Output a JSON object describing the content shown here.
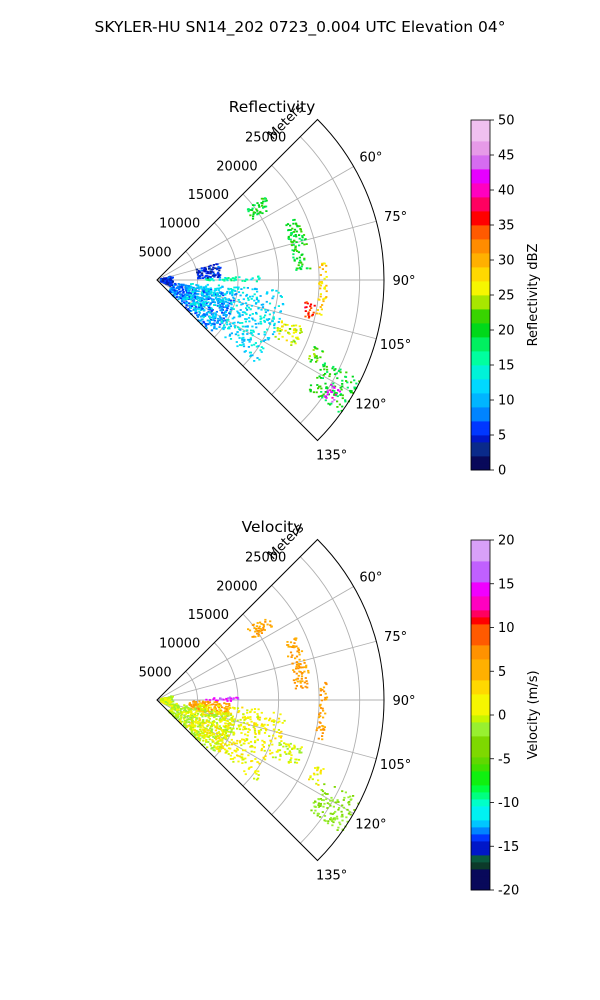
{
  "figure": {
    "suptitle": "SKYLER-HU  SN14_202  0723_0.004 UTC Elevation 04°"
  },
  "chart_data": [
    {
      "type": "polar-sector",
      "title": "Reflectivity",
      "radial_label": "Meters",
      "theta_range_deg": [
        45,
        135
      ],
      "theta_ticks": [
        "60°",
        "75°",
        "90°",
        "105°",
        "120°",
        "135°"
      ],
      "theta_tick_values": [
        60,
        75,
        90,
        105,
        120,
        135
      ],
      "r_range_m": [
        0,
        28000
      ],
      "r_ticks": [
        "5000",
        "10000",
        "15000",
        "20000",
        "25000"
      ],
      "r_tick_values": [
        5000,
        10000,
        15000,
        20000,
        25000
      ],
      "colorbar": {
        "label": "Reflectivity dBZ",
        "min": 0,
        "max": 50,
        "ticks": [
          "0",
          "5",
          "10",
          "15",
          "20",
          "25",
          "30",
          "35",
          "40",
          "45",
          "50"
        ]
      },
      "echo_regions": [
        {
          "theta_deg": [
            116,
            126
          ],
          "r_m": [
            23000,
            28000
          ],
          "value": 20
        },
        {
          "theta_deg": [
            121,
            125
          ],
          "r_m": [
            25000,
            26500
          ],
          "value": 42
        },
        {
          "theta_deg": [
            112,
            118
          ],
          "r_m": [
            21000,
            22500
          ],
          "value": 22
        },
        {
          "theta_deg": [
            108,
            116
          ],
          "r_m": [
            16000,
            19000
          ],
          "value": 25
        },
        {
          "theta_deg": [
            84,
            102
          ],
          "r_m": [
            20000,
            21000
          ],
          "value": 28
        },
        {
          "theta_deg": [
            98,
            104
          ],
          "r_m": [
            18500,
            20000
          ],
          "value": 35
        },
        {
          "theta_deg": [
            66,
            86
          ],
          "r_m": [
            17000,
            19000
          ],
          "value": 20
        },
        {
          "theta_deg": [
            52,
            58
          ],
          "r_m": [
            14000,
            17000
          ],
          "value": 20
        },
        {
          "theta_deg": [
            88,
            91
          ],
          "r_m": [
            6000,
            13000
          ],
          "value": 15
        },
        {
          "theta_deg": [
            100,
            135
          ],
          "r_m": [
            2000,
            10000
          ],
          "value": 8
        },
        {
          "theta_deg": [
            95,
            130
          ],
          "r_m": [
            4000,
            16000
          ],
          "value": 12
        },
        {
          "theta_deg": [
            75,
            88
          ],
          "r_m": [
            5000,
            8000
          ],
          "value": 5
        },
        {
          "theta_deg": [
            75,
            115
          ],
          "r_m": [
            500,
            2000
          ],
          "value": 5
        }
      ]
    },
    {
      "type": "polar-sector",
      "title": "Velocity",
      "radial_label": "Meters",
      "theta_range_deg": [
        45,
        135
      ],
      "theta_ticks": [
        "60°",
        "75°",
        "90°",
        "105°",
        "120°",
        "135°"
      ],
      "theta_tick_values": [
        60,
        75,
        90,
        105,
        120,
        135
      ],
      "r_range_m": [
        0,
        28000
      ],
      "r_ticks": [
        "5000",
        "10000",
        "15000",
        "20000",
        "25000"
      ],
      "r_tick_values": [
        5000,
        10000,
        15000,
        20000,
        25000
      ],
      "colorbar": {
        "label": "Velocity (m/s)",
        "min": -20,
        "max": 20,
        "ticks": [
          "-20",
          "-15",
          "-10",
          "-5",
          "0",
          "5",
          "10",
          "15",
          "20"
        ]
      },
      "echo_regions": [
        {
          "theta_deg": [
            116,
            126
          ],
          "r_m": [
            23000,
            28000
          ],
          "value": -3
        },
        {
          "theta_deg": [
            112,
            118
          ],
          "r_m": [
            21000,
            22500
          ],
          "value": 1
        },
        {
          "theta_deg": [
            108,
            116
          ],
          "r_m": [
            16000,
            19000
          ],
          "value": 0
        },
        {
          "theta_deg": [
            84,
            104
          ],
          "r_m": [
            20000,
            21000
          ],
          "value": 6
        },
        {
          "theta_deg": [
            66,
            86
          ],
          "r_m": [
            17000,
            19000
          ],
          "value": 6
        },
        {
          "theta_deg": [
            52,
            58
          ],
          "r_m": [
            14000,
            17000
          ],
          "value": 6
        },
        {
          "theta_deg": [
            88,
            91
          ],
          "r_m": [
            6000,
            10000
          ],
          "value": 15
        },
        {
          "theta_deg": [
            92,
            104
          ],
          "r_m": [
            4000,
            9000
          ],
          "value": 6
        },
        {
          "theta_deg": [
            100,
            135
          ],
          "r_m": [
            2000,
            10000
          ],
          "value": -1
        },
        {
          "theta_deg": [
            95,
            130
          ],
          "r_m": [
            5000,
            16000
          ],
          "value": 1
        },
        {
          "theta_deg": [
            75,
            115
          ],
          "r_m": [
            500,
            2000
          ],
          "value": 0
        }
      ]
    }
  ]
}
